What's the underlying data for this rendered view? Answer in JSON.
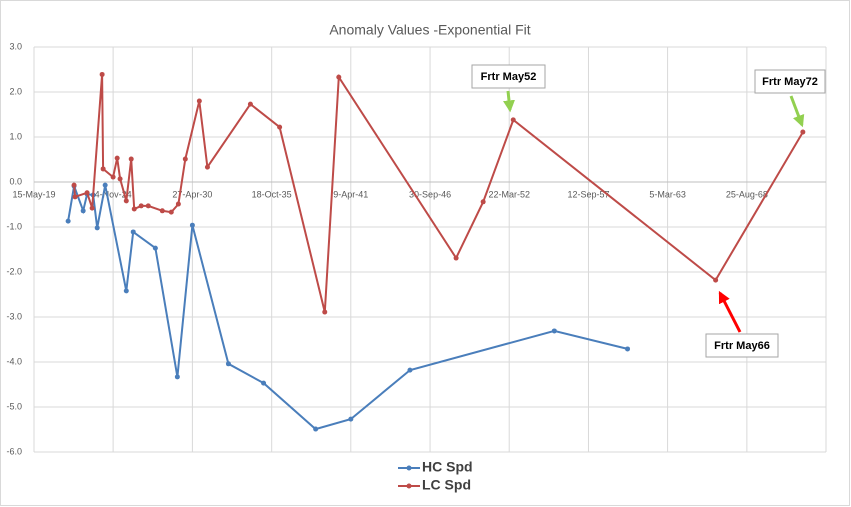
{
  "chart_data": {
    "type": "line",
    "title": "Anomaly Values -Exponential Fit",
    "xlim": [
      1919.37,
      1974.12
    ],
    "xticks": [
      {
        "value": 1919.37,
        "label": "15-May-19"
      },
      {
        "value": 1924.84,
        "label": "4-Nov-24"
      },
      {
        "value": 1930.32,
        "label": "27-Apr-30"
      },
      {
        "value": 1935.8,
        "label": "18-Oct-35"
      },
      {
        "value": 1941.27,
        "label": "9-Apr-41"
      },
      {
        "value": 1946.75,
        "label": "30-Sep-46"
      },
      {
        "value": 1952.22,
        "label": "22-Mar-52"
      },
      {
        "value": 1957.7,
        "label": "12-Sep-57"
      },
      {
        "value": 1963.17,
        "label": "5-Mar-63"
      },
      {
        "value": 1968.65,
        "label": "25-Aug-68"
      }
    ],
    "ylim": [
      -6,
      3
    ],
    "yticks": [
      {
        "value": 3,
        "label": "3.0"
      },
      {
        "value": 2,
        "label": "2.0"
      },
      {
        "value": 1,
        "label": "1.0"
      },
      {
        "value": 0,
        "label": "0.0"
      },
      {
        "value": -1,
        "label": "-1.0"
      },
      {
        "value": -2,
        "label": "-2.0"
      },
      {
        "value": -3,
        "label": "-3.0"
      },
      {
        "value": -4,
        "label": "-4.0"
      },
      {
        "value": -5,
        "label": "-5.0"
      },
      {
        "value": -6,
        "label": "-6.0"
      }
    ],
    "grid": true,
    "legend": "bottom",
    "series": [
      {
        "name": "HC Spd",
        "color": "#4a7ebb",
        "x": [
          1921.73,
          1922.14,
          1922.77,
          1923.04,
          1923.46,
          1923.74,
          1924.29,
          1925.75,
          1926.23,
          1927.76,
          1929.28,
          1930.32,
          1932.81,
          1935.24,
          1938.84,
          1941.27,
          1945.36,
          1955.34,
          1960.4
        ],
        "values": [
          -0.87,
          -0.09,
          -0.64,
          -0.27,
          -0.29,
          -1.02,
          -0.07,
          -2.42,
          -1.11,
          -1.47,
          -4.33,
          -0.96,
          -4.04,
          -4.47,
          -5.49,
          -5.27,
          -4.18,
          -3.31,
          -3.71
        ]
      },
      {
        "name": "LC Spd",
        "color": "#be4b48",
        "x": [
          1922.14,
          1922.21,
          1923.04,
          1923.39,
          1924.08,
          1924.15,
          1924.84,
          1925.12,
          1925.32,
          1925.75,
          1926.09,
          1926.3,
          1926.78,
          1927.27,
          1928.24,
          1928.86,
          1929.35,
          1929.83,
          1930.8,
          1931.36,
          1934.33,
          1936.35,
          1939.47,
          1940.44,
          1948.55,
          1950.42,
          1952.5,
          1966.49,
          1972.52
        ],
        "values": [
          -0.07,
          -0.33,
          -0.24,
          -0.58,
          2.39,
          0.29,
          0.11,
          0.53,
          0.07,
          -0.42,
          0.51,
          -0.6,
          -0.53,
          -0.53,
          -0.64,
          -0.67,
          -0.49,
          0.51,
          1.8,
          0.33,
          1.73,
          1.22,
          -2.89,
          2.33,
          -1.69,
          -0.44,
          1.38,
          -2.18,
          1.11
        ]
      }
    ],
    "annotations": [
      "Frtr May52",
      "Frtr May72",
      "Frtr May66"
    ]
  }
}
